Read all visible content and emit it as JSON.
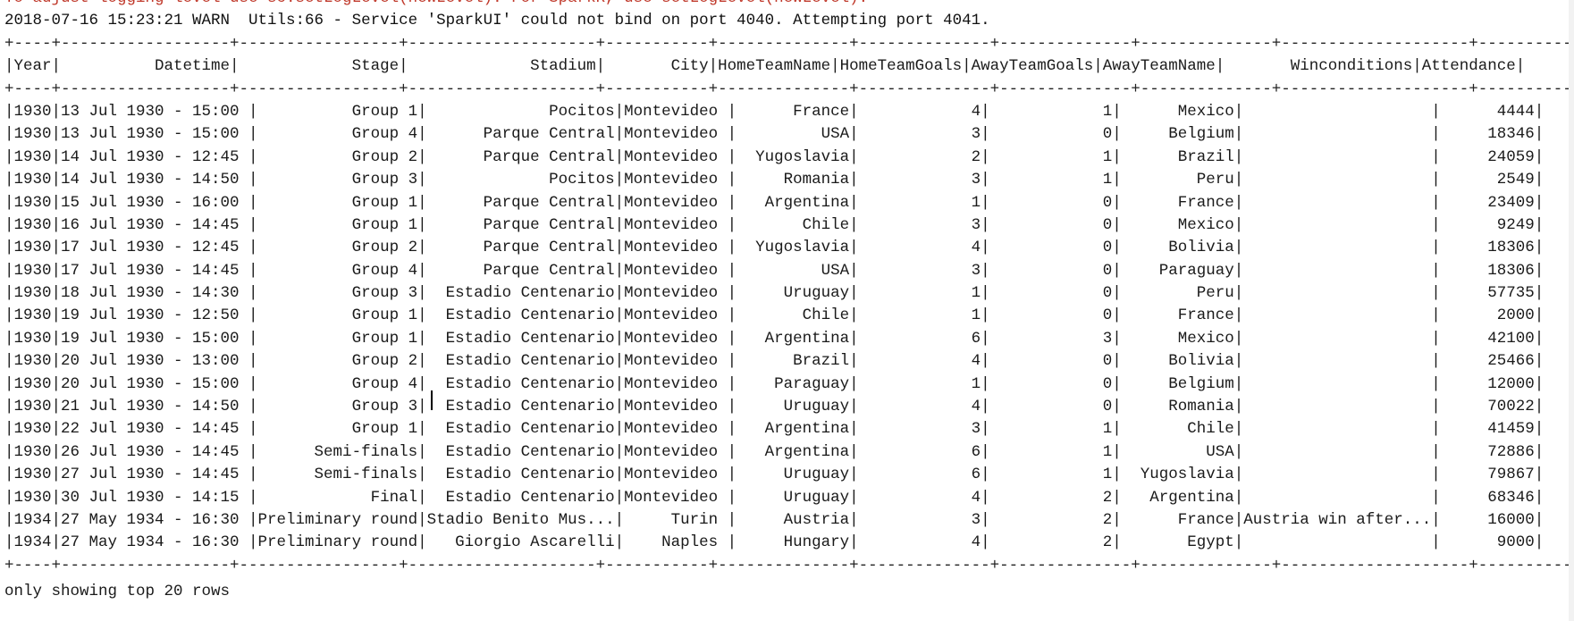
{
  "console": {
    "cutoff_line": "To adjust logging level use sc.setLogLevel(newLevel). For SparkR, use setLogLevel(newLevel).",
    "warn_line": "2018-07-16 15:23:21 WARN  Utils:66 - Service 'SparkUI' could not bind on port 4040. Attempting port 4041.",
    "rule_line": "+----+------------------+-----------------+--------------------+-----------+--------------+--------------+--------------+--------------+--------------------+----------+",
    "header_line": "|Year|          Datetime|            Stage|             Stadium|       City|HomeTeamName|HomeTeamGoals|AwayTeamGoals|AwayTeamName|       Winconditions|Attendance|",
    "rows": [
      "|1930|13 Jul 1930 - 15:00 |          Group 1|             Pocitos|Montevideo |      France|            4|            1|      Mexico|                    |      4444|",
      "|1930|13 Jul 1930 - 15:00 |          Group 4|      Parque Central|Montevideo |         USA|            3|            0|     Belgium|                    |     18346|",
      "|1930|14 Jul 1930 - 12:45 |          Group 2|      Parque Central|Montevideo |  Yugoslavia|            2|            1|      Brazil|                    |     24059|",
      "|1930|14 Jul 1930 - 14:50 |          Group 3|             Pocitos|Montevideo |     Romania|            3|            1|        Peru|                    |      2549|",
      "|1930|15 Jul 1930 - 16:00 |          Group 1|      Parque Central|Montevideo |   Argentina|            1|            0|      France|                    |     23409|",
      "|1930|16 Jul 1930 - 14:45 |          Group 1|      Parque Central|Montevideo |       Chile|            3|            0|      Mexico|                    |      9249|",
      "|1930|17 Jul 1930 - 12:45 |          Group 2|      Parque Central|Montevideo |  Yugoslavia|            4|            0|     Bolivia|                    |     18306|",
      "|1930|17 Jul 1930 - 14:45 |          Group 4|      Parque Central|Montevideo |         USA|            3|            0|    Paraguay|                    |     18306|",
      "|1930|18 Jul 1930 - 14:30 |          Group 3|  Estadio Centenario|Montevideo |     Uruguay|            1|            0|        Peru|                    |     57735|",
      "|1930|19 Jul 1930 - 12:50 |          Group 1|  Estadio Centenario|Montevideo |       Chile|            1|            0|      France|                    |      2000|",
      "|1930|19 Jul 1930 - 15:00 |          Group 1|  Estadio Centenario|Montevideo |   Argentina|            6|            3|      Mexico|                    |     42100|",
      "|1930|20 Jul 1930 - 13:00 |          Group 2|  Estadio Centenario|Montevideo |      Brazil|            4|            0|     Bolivia|                    |     25466|",
      "|1930|20 Jul 1930 - 15:00 |          Group 4|  Estadio Centenario|Montevideo |    Paraguay|            1|            0|     Belgium|                    |     12000|",
      "|1930|21 Jul 1930 - 14:50 |          Group 3|  Estadio Centenario|Montevideo |     Uruguay|            4|            0|     Romania|                    |     70022|",
      "|1930|22 Jul 1930 - 14:45 |          Group 1|  Estadio Centenario|Montevideo |   Argentina|            3|            1|       Chile|                    |     41459|",
      "|1930|26 Jul 1930 - 14:45 |      Semi-finals|  Estadio Centenario|Montevideo |   Argentina|            6|            1|         USA|                    |     72886|",
      "|1930|27 Jul 1930 - 14:45 |      Semi-finals|  Estadio Centenario|Montevideo |     Uruguay|            6|            1|  Yugoslavia|                    |     79867|",
      "|1930|30 Jul 1930 - 14:15 |            Final|  Estadio Centenario|Montevideo |     Uruguay|            4|            2|   Argentina|                    |     68346|",
      "|1934|27 May 1934 - 16:30 |Preliminary round|Stadio Benito Mus...|     Turin |     Austria|            3|            2|      France|Austria win after...|     16000|",
      "|1934|27 May 1934 - 16:30 |Preliminary round|   Giorgio Ascarelli|    Naples |     Hungary|            4|            2|       Egypt|                    |      9000|"
    ],
    "footer_line": "only showing top 20 rows"
  }
}
